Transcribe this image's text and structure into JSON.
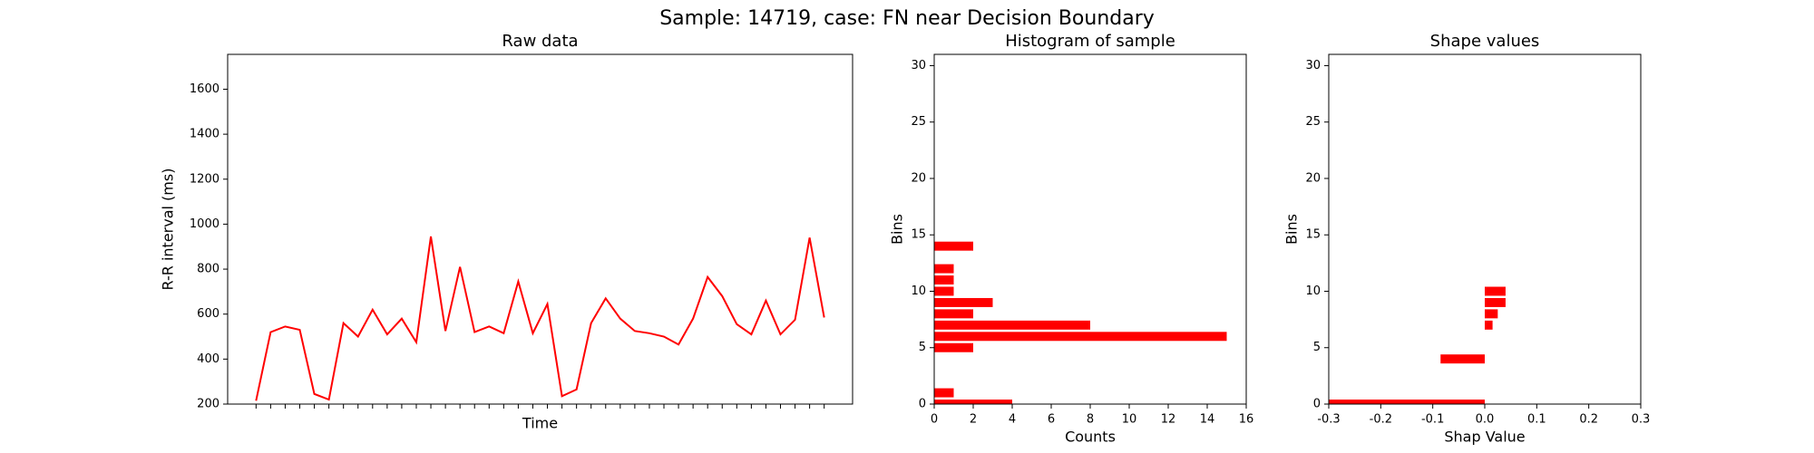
{
  "title": "Sample: 14719, case: FN near Decision Boundary",
  "chart_data": [
    {
      "type": "line",
      "title": "Raw data",
      "xlabel": "Time",
      "ylabel": "R-R interval (ms)",
      "categories": [
        null,
        null,
        null,
        null,
        null,
        null,
        null,
        null,
        null,
        null,
        null,
        null,
        null,
        null,
        null,
        null,
        null,
        null,
        null,
        null,
        null,
        null,
        null,
        null,
        null,
        null,
        null,
        null,
        null,
        null,
        null,
        null,
        null,
        null,
        null,
        null,
        null,
        null,
        null,
        null
      ],
      "values": [
        215,
        520,
        545,
        530,
        245,
        220,
        560,
        500,
        620,
        510,
        580,
        475,
        945,
        525,
        810,
        520,
        545,
        515,
        745,
        515,
        645,
        235,
        265,
        560,
        670,
        580,
        525,
        515,
        500,
        465,
        580,
        765,
        680,
        555,
        510,
        660,
        510,
        575,
        940,
        585
      ],
      "color": "#ff0000",
      "ylim": [
        200,
        1755
      ],
      "yticks": [
        200,
        400,
        600,
        800,
        1000,
        1200,
        1400,
        1600
      ]
    },
    {
      "type": "barh",
      "title": "Histogram of sample",
      "xlabel": "Counts",
      "ylabel": "Bins",
      "y": [
        0,
        1,
        5,
        6,
        7,
        8,
        9,
        10,
        11,
        12,
        14
      ],
      "values": [
        4,
        1,
        2,
        15,
        8,
        2,
        3,
        1,
        1,
        1,
        2
      ],
      "color": "#ff0000",
      "xlim": [
        0,
        16
      ],
      "xticks": [
        0,
        2,
        4,
        6,
        8,
        10,
        12,
        14,
        16
      ],
      "ylim": [
        0,
        31
      ],
      "yticks": [
        0,
        5,
        10,
        15,
        20,
        25,
        30
      ]
    },
    {
      "type": "barh",
      "title": "Shape values",
      "xlabel": "Shap Value",
      "ylabel": "Bins",
      "y": [
        0,
        4,
        7,
        8,
        9,
        10
      ],
      "values": [
        -0.3,
        -0.085,
        0.015,
        0.025,
        0.04,
        0.04
      ],
      "color": "#ff0000",
      "xlim": [
        -0.3,
        0.3
      ],
      "xticks": [
        -0.3,
        -0.2,
        -0.1,
        {
          "value": 0,
          "label": "0.0"
        },
        0.1,
        0.2,
        0.3
      ],
      "ylim": [
        0,
        31
      ],
      "yticks": [
        0,
        5,
        10,
        15,
        20,
        25,
        30
      ]
    }
  ]
}
